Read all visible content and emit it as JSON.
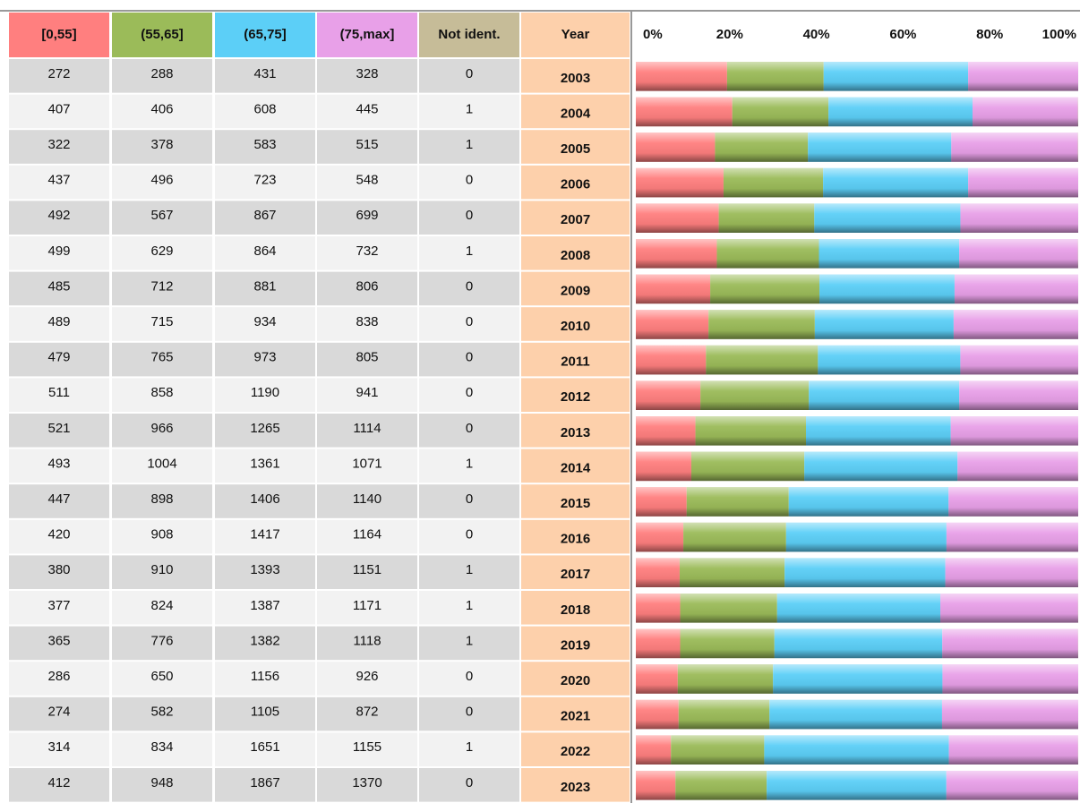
{
  "table": {
    "columns": [
      {
        "label": "[0,55]",
        "color": "#ff7f7f"
      },
      {
        "label": "(55,65]",
        "color": "#9bbb59"
      },
      {
        "label": "(65,75]",
        "color": "#5ccff7"
      },
      {
        "label": "(75,max]",
        "color": "#e8a0e8"
      },
      {
        "label": "Not ident.",
        "color": "#c6bc98"
      }
    ],
    "year_header": "Year",
    "year_color": "#fdd0ab",
    "rows": [
      {
        "year": "2003",
        "values": [
          272,
          288,
          431,
          328,
          0
        ]
      },
      {
        "year": "2004",
        "values": [
          407,
          406,
          608,
          445,
          1
        ]
      },
      {
        "year": "2005",
        "values": [
          322,
          378,
          583,
          515,
          1
        ]
      },
      {
        "year": "2006",
        "values": [
          437,
          496,
          723,
          548,
          0
        ]
      },
      {
        "year": "2007",
        "values": [
          492,
          567,
          867,
          699,
          0
        ]
      },
      {
        "year": "2008",
        "values": [
          499,
          629,
          864,
          732,
          1
        ]
      },
      {
        "year": "2009",
        "values": [
          485,
          712,
          881,
          806,
          0
        ]
      },
      {
        "year": "2010",
        "values": [
          489,
          715,
          934,
          838,
          0
        ]
      },
      {
        "year": "2011",
        "values": [
          479,
          765,
          973,
          805,
          0
        ]
      },
      {
        "year": "2012",
        "values": [
          511,
          858,
          1190,
          941,
          0
        ]
      },
      {
        "year": "2013",
        "values": [
          521,
          966,
          1265,
          1114,
          0
        ]
      },
      {
        "year": "2014",
        "values": [
          493,
          1004,
          1361,
          1071,
          1
        ]
      },
      {
        "year": "2015",
        "values": [
          447,
          898,
          1406,
          1140,
          0
        ]
      },
      {
        "year": "2016",
        "values": [
          420,
          908,
          1417,
          1164,
          0
        ]
      },
      {
        "year": "2017",
        "values": [
          380,
          910,
          1393,
          1151,
          1
        ]
      },
      {
        "year": "2018",
        "values": [
          377,
          824,
          1387,
          1171,
          1
        ]
      },
      {
        "year": "2019",
        "values": [
          365,
          776,
          1382,
          1118,
          1
        ]
      },
      {
        "year": "2020",
        "values": [
          286,
          650,
          1156,
          926,
          0
        ]
      },
      {
        "year": "2021",
        "values": [
          274,
          582,
          1105,
          872,
          0
        ]
      },
      {
        "year": "2022",
        "values": [
          314,
          834,
          1651,
          1155,
          1
        ]
      },
      {
        "year": "2023",
        "values": [
          412,
          948,
          1867,
          1370,
          0
        ]
      }
    ]
  },
  "chart": {
    "ticks": [
      {
        "value": 0,
        "label": "0%"
      },
      {
        "value": 20,
        "label": "20%"
      },
      {
        "value": 40,
        "label": "40%"
      },
      {
        "value": 60,
        "label": "60%"
      },
      {
        "value": 80,
        "label": "80%"
      },
      {
        "value": 100,
        "label": "100%"
      }
    ]
  }
}
